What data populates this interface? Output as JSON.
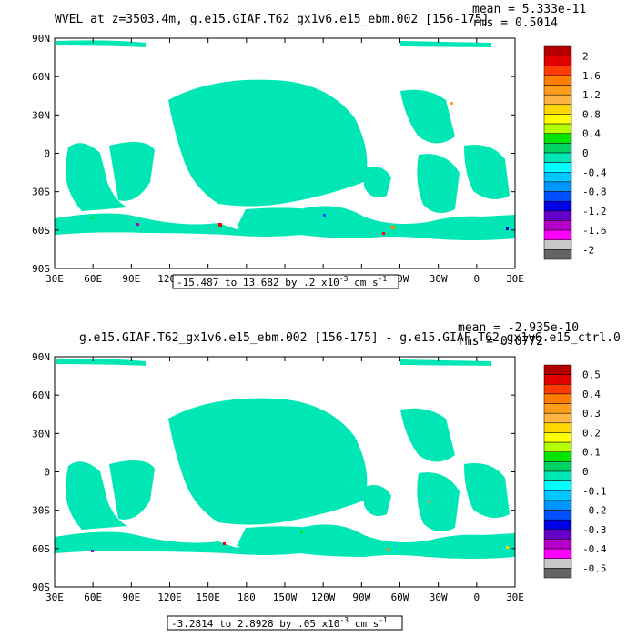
{
  "chart_data": [
    {
      "type": "heatmap",
      "title": "WVEL at z=3503.4m, g.e15.GIAF.T62_gx1v6.e15_ebm.002 [156-175]",
      "stats": {
        "mean": "mean = 5.333e-11",
        "rms": "rms = 0.5014"
      },
      "range_label": "-15.487 to 13.682 by .2 x10",
      "range_exponent": "-3",
      "range_units": " cm s",
      "range_units_exponent": "-1",
      "x_ticks": [
        "30E",
        "60E",
        "90E",
        "120E",
        "150E",
        "180",
        "150W",
        "120W",
        "90W",
        "60W",
        "30W",
        "0",
        "30E"
      ],
      "y_ticks": [
        "90N",
        "60N",
        "30N",
        "0",
        "30S",
        "60S",
        "90S"
      ],
      "xlim": [
        30,
        390
      ],
      "ylim": [
        -90,
        90
      ],
      "colorbar": {
        "labels": [
          "2",
          "1.6",
          "1.2",
          "0.8",
          "0.4",
          "0",
          "-0.4",
          "-0.8",
          "-1.2",
          "-1.6",
          "-2"
        ],
        "colors": [
          "#b40000",
          "#e00000",
          "#ff3c00",
          "#ff7d00",
          "#ff9c1a",
          "#ffb340",
          "#ffd700",
          "#ffff00",
          "#b4ff00",
          "#00e600",
          "#00d264",
          "#00e6b4",
          "#00ffff",
          "#00c8ff",
          "#0096ff",
          "#0050ff",
          "#0000e6",
          "#6400c8",
          "#b400c8",
          "#ff00ff",
          "#c8c8c8",
          "#646464"
        ]
      }
    },
    {
      "type": "heatmap",
      "title": "g.e15.GIAF.T62_gx1v6.e15_ebm.002 [156-175] - g.e15.GIAF.T62_gx1v6.e15_ctrl.0",
      "stats": {
        "mean": "mean = -2.935e-10",
        "rms": "rms = 0.0772"
      },
      "range_label": "-3.2814 to 2.8928 by .05 x10",
      "range_exponent": "-3",
      "range_units": " cm s",
      "range_units_exponent": "-1",
      "x_ticks": [
        "30E",
        "60E",
        "90E",
        "120E",
        "150E",
        "180",
        "150W",
        "120W",
        "90W",
        "60W",
        "30W",
        "0",
        "30E"
      ],
      "y_ticks": [
        "90N",
        "60N",
        "30N",
        "0",
        "30S",
        "60S",
        "90S"
      ],
      "xlim": [
        30,
        390
      ],
      "ylim": [
        -90,
        90
      ],
      "colorbar": {
        "labels": [
          "0.5",
          "0.4",
          "0.3",
          "0.2",
          "0.1",
          "0",
          "-0.1",
          "-0.2",
          "-0.3",
          "-0.4",
          "-0.5"
        ],
        "colors": [
          "#b40000",
          "#e00000",
          "#ff3c00",
          "#ff7d00",
          "#ff9c1a",
          "#ffb340",
          "#ffd700",
          "#ffff00",
          "#b4ff00",
          "#00e600",
          "#00d264",
          "#00e6b4",
          "#00ffff",
          "#00c8ff",
          "#0096ff",
          "#0050ff",
          "#0000e6",
          "#6400c8",
          "#b400c8",
          "#ff00ff",
          "#c8c8c8",
          "#646464"
        ]
      }
    }
  ]
}
